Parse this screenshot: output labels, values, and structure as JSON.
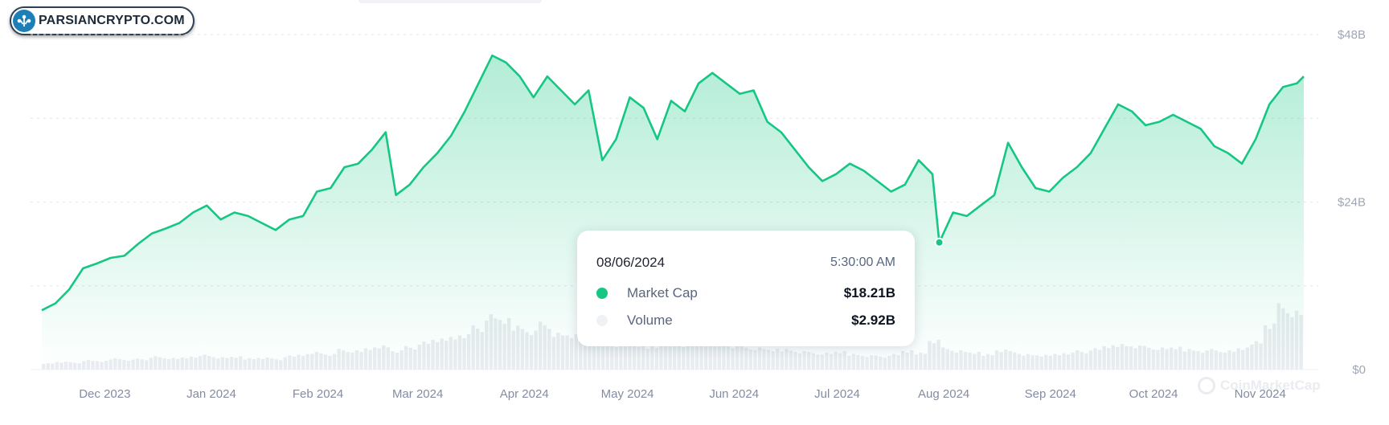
{
  "brand": {
    "logo_text": "PARSIANCRYPTO.COM",
    "watermark": "CoinMarketCap"
  },
  "chart_data": {
    "type": "area",
    "title": "",
    "y_axis": {
      "ticks": [
        "$48B",
        "$24B",
        "$0"
      ],
      "tick_values": [
        48,
        24,
        0
      ],
      "unit": "B",
      "position": "right"
    },
    "x_axis": {
      "ticks": [
        "Dec 2023",
        "Jan 2024",
        "Feb 2024",
        "Mar 2024",
        "Apr 2024",
        "May 2024",
        "Jun 2024",
        "Jul 2024",
        "Aug 2024",
        "Sep 2024",
        "Oct 2024",
        "Nov 2024"
      ]
    },
    "grid": "horizontal-dashed",
    "colors": {
      "line": "#16c784",
      "volume": "#e9ecf0",
      "grid": "#e3e6eb"
    },
    "series": [
      {
        "name": "Market Cap",
        "points": [
          [
            "2023-11-19",
            8.5
          ],
          [
            "2023-11-23",
            9.5
          ],
          [
            "2023-11-27",
            11.5
          ],
          [
            "2023-12-01",
            14.5
          ],
          [
            "2023-12-05",
            15.2
          ],
          [
            "2023-12-09",
            16.0
          ],
          [
            "2023-12-13",
            16.3
          ],
          [
            "2023-12-17",
            18.0
          ],
          [
            "2023-12-21",
            19.5
          ],
          [
            "2023-12-25",
            20.2
          ],
          [
            "2023-12-29",
            21.0
          ],
          [
            "2024-01-02",
            22.5
          ],
          [
            "2024-01-06",
            23.5
          ],
          [
            "2024-01-10",
            21.5
          ],
          [
            "2024-01-14",
            22.5
          ],
          [
            "2024-01-18",
            22.0
          ],
          [
            "2024-01-22",
            21.0
          ],
          [
            "2024-01-26",
            20.0
          ],
          [
            "2024-01-30",
            21.5
          ],
          [
            "2024-02-03",
            22.0
          ],
          [
            "2024-02-07",
            25.5
          ],
          [
            "2024-02-11",
            26.0
          ],
          [
            "2024-02-15",
            29.0
          ],
          [
            "2024-02-19",
            29.5
          ],
          [
            "2024-02-23",
            31.5
          ],
          [
            "2024-02-27",
            34.0
          ],
          [
            "2024-03-01",
            25.0
          ],
          [
            "2024-03-05",
            26.5
          ],
          [
            "2024-03-09",
            29.0
          ],
          [
            "2024-03-13",
            31.0
          ],
          [
            "2024-03-17",
            33.5
          ],
          [
            "2024-03-21",
            37.0
          ],
          [
            "2024-03-25",
            41.0
          ],
          [
            "2024-03-29",
            45.0
          ],
          [
            "2024-04-02",
            44.0
          ],
          [
            "2024-04-06",
            42.0
          ],
          [
            "2024-04-10",
            39.0
          ],
          [
            "2024-04-14",
            42.0
          ],
          [
            "2024-04-18",
            40.0
          ],
          [
            "2024-04-22",
            38.0
          ],
          [
            "2024-04-26",
            40.0
          ],
          [
            "2024-04-30",
            30.0
          ],
          [
            "2024-05-04",
            33.0
          ],
          [
            "2024-05-08",
            39.0
          ],
          [
            "2024-05-12",
            37.5
          ],
          [
            "2024-05-16",
            33.0
          ],
          [
            "2024-05-20",
            38.5
          ],
          [
            "2024-05-24",
            37.0
          ],
          [
            "2024-05-28",
            41.0
          ],
          [
            "2024-06-01",
            42.5
          ],
          [
            "2024-06-05",
            41.0
          ],
          [
            "2024-06-09",
            39.5
          ],
          [
            "2024-06-13",
            40.0
          ],
          [
            "2024-06-17",
            35.5
          ],
          [
            "2024-06-21",
            34.0
          ],
          [
            "2024-06-25",
            31.5
          ],
          [
            "2024-06-29",
            29.0
          ],
          [
            "2024-07-03",
            27.0
          ],
          [
            "2024-07-07",
            28.0
          ],
          [
            "2024-07-11",
            29.5
          ],
          [
            "2024-07-15",
            28.5
          ],
          [
            "2024-07-19",
            27.0
          ],
          [
            "2024-07-23",
            25.5
          ],
          [
            "2024-07-27",
            26.5
          ],
          [
            "2024-07-31",
            30.0
          ],
          [
            "2024-08-04",
            28.0
          ],
          [
            "2024-08-06",
            18.21
          ],
          [
            "2024-08-10",
            22.5
          ],
          [
            "2024-08-14",
            22.0
          ],
          [
            "2024-08-18",
            23.5
          ],
          [
            "2024-08-22",
            25.0
          ],
          [
            "2024-08-26",
            32.5
          ],
          [
            "2024-08-30",
            29.0
          ],
          [
            "2024-09-03",
            26.0
          ],
          [
            "2024-09-07",
            25.5
          ],
          [
            "2024-09-11",
            27.5
          ],
          [
            "2024-09-15",
            29.0
          ],
          [
            "2024-09-19",
            31.0
          ],
          [
            "2024-09-23",
            34.5
          ],
          [
            "2024-09-27",
            38.0
          ],
          [
            "2024-10-01",
            37.0
          ],
          [
            "2024-10-05",
            35.0
          ],
          [
            "2024-10-09",
            35.5
          ],
          [
            "2024-10-13",
            36.5
          ],
          [
            "2024-10-17",
            35.5
          ],
          [
            "2024-10-21",
            34.5
          ],
          [
            "2024-10-25",
            32.0
          ],
          [
            "2024-10-29",
            31.0
          ],
          [
            "2024-11-02",
            29.5
          ],
          [
            "2024-11-06",
            33.0
          ],
          [
            "2024-11-10",
            38.0
          ],
          [
            "2024-11-14",
            40.5
          ],
          [
            "2024-11-18",
            41.0
          ],
          [
            "2024-11-20",
            42.0
          ]
        ]
      },
      {
        "name": "Volume",
        "note_type": "bar",
        "values_b": [
          0.9,
          1.1,
          1.0,
          1.3,
          1.2,
          1.6,
          1.4,
          1.5,
          1.8,
          1.6,
          1.7,
          1.9,
          2.0,
          1.7,
          1.8,
          1.6,
          1.7,
          1.5,
          1.9,
          2.1,
          2.5,
          2.2,
          2.8,
          2.6,
          3.0,
          3.4,
          2.7,
          3.2,
          3.8,
          4.2,
          4.6,
          5.0,
          6.0,
          7.5,
          7.0,
          6.2,
          5.5,
          6.5,
          5.0,
          4.8,
          5.2,
          4.2,
          3.6,
          4.0,
          3.5,
          3.3,
          3.9,
          3.6,
          4.4,
          4.0,
          3.8,
          3.4,
          3.2,
          3.0,
          2.8,
          2.9,
          2.6,
          2.4,
          2.3,
          2.5,
          2.2,
          2.0,
          1.9,
          2.1,
          2.6,
          2.4,
          4.2,
          3.0,
          2.6,
          2.4,
          2.2,
          2.8,
          2.5,
          2.1,
          2.0,
          2.2,
          2.4,
          2.6,
          2.9,
          3.3,
          3.6,
          3.4,
          3.2,
          3.0,
          3.1,
          2.9,
          2.7,
          2.8,
          2.6,
          3.0,
          4.0,
          6.5,
          9.0,
          8.0
        ]
      }
    ],
    "highlight_point": {
      "date": "2024-08-06",
      "value": 18.21
    }
  },
  "tooltip": {
    "date": "08/06/2024",
    "time": "5:30:00 AM",
    "rows": [
      {
        "label": "Market Cap",
        "value": "$18.21B",
        "dot_color": "#16c784"
      },
      {
        "label": "Volume",
        "value": "$2.92B",
        "dot_color": "#eff2f5"
      }
    ]
  }
}
